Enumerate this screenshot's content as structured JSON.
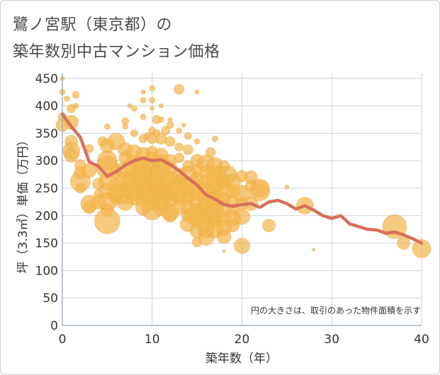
{
  "chart_data": {
    "type": "scatter",
    "title": [
      "鷺ノ宮駅（東京都）の",
      "築年数別中古マンション価格"
    ],
    "xlabel": "築年数（年）",
    "ylabel": "坪（3.3㎡）単価（万円）",
    "xlim": [
      0,
      40
    ],
    "ylim": [
      0,
      460
    ],
    "xticks": [
      0,
      10,
      20,
      30,
      40
    ],
    "yticks": [
      0,
      50,
      100,
      150,
      200,
      250,
      300,
      350,
      400,
      450
    ],
    "grid": true,
    "annotation": "円の大きさは、取引のあった物件面積を示す",
    "colors": {
      "bubble": "#f3b64d",
      "line": "#d7705a",
      "grid": "#c9d3de",
      "axis": "#8fa3b7"
    },
    "series": [
      {
        "kind": "line",
        "x": [
          0,
          1,
          2,
          3,
          4,
          5,
          6,
          7,
          8,
          9,
          10,
          11,
          12,
          13,
          14,
          15,
          16,
          17,
          18,
          19,
          20,
          21,
          22,
          23,
          24,
          25,
          26,
          27,
          28,
          29,
          30,
          31,
          32,
          33,
          34,
          35,
          36,
          37,
          38,
          39,
          40
        ],
        "y": [
          385,
          362,
          343,
          298,
          290,
          272,
          280,
          292,
          300,
          305,
          300,
          302,
          293,
          282,
          268,
          256,
          238,
          230,
          220,
          217,
          220,
          222,
          215,
          225,
          228,
          222,
          212,
          218,
          210,
          200,
          195,
          200,
          185,
          180,
          175,
          174,
          168,
          170,
          165,
          158,
          150
        ]
      },
      {
        "kind": "bubble",
        "points": [
          [
            0,
            450,
            3
          ],
          [
            0,
            425,
            4
          ],
          [
            0,
            380,
            6
          ],
          [
            0,
            365,
            9
          ],
          [
            0.5,
            413,
            4
          ],
          [
            1,
            395,
            6
          ],
          [
            1,
            370,
            10
          ],
          [
            1,
            335,
            9
          ],
          [
            1,
            318,
            12
          ],
          [
            1,
            310,
            10
          ],
          [
            1.5,
            420,
            5
          ],
          [
            1.5,
            400,
            4
          ],
          [
            2,
            292,
            8
          ],
          [
            2,
            278,
            9
          ],
          [
            2,
            262,
            14
          ],
          [
            2,
            250,
            7
          ],
          [
            3,
            322,
            6
          ],
          [
            3,
            282,
            10
          ],
          [
            3,
            222,
            12
          ],
          [
            3,
            215,
            9
          ],
          [
            4,
            258,
            8
          ],
          [
            4,
            240,
            6
          ],
          [
            4,
            225,
            10
          ],
          [
            4.5,
            335,
            7
          ],
          [
            5,
            362,
            4
          ],
          [
            5,
            327,
            10
          ],
          [
            5,
            300,
            14
          ],
          [
            5,
            288,
            16
          ],
          [
            5,
            262,
            12
          ],
          [
            5,
            245,
            11
          ],
          [
            5,
            225,
            13
          ],
          [
            5,
            210,
            9
          ],
          [
            5,
            190,
            18
          ],
          [
            6,
            335,
            12
          ],
          [
            6,
            280,
            9
          ],
          [
            6,
            255,
            10
          ],
          [
            6,
            240,
            12
          ],
          [
            6,
            230,
            8
          ],
          [
            7,
            372,
            5
          ],
          [
            7,
            362,
            4
          ],
          [
            7,
            320,
            10
          ],
          [
            7,
            305,
            9
          ],
          [
            7,
            282,
            13
          ],
          [
            7,
            262,
            14
          ],
          [
            7,
            240,
            15
          ],
          [
            7,
            225,
            12
          ],
          [
            7.5,
            400,
            3
          ],
          [
            8,
            395,
            4
          ],
          [
            8,
            350,
            5
          ],
          [
            8,
            315,
            11
          ],
          [
            8,
            290,
            15
          ],
          [
            8,
            260,
            17
          ],
          [
            8,
            245,
            14
          ],
          [
            8,
            232,
            10
          ],
          [
            8.5,
            295,
            9
          ],
          [
            9,
            425,
            3
          ],
          [
            9,
            410,
            4
          ],
          [
            9,
            380,
            4
          ],
          [
            9,
            340,
            6
          ],
          [
            9,
            312,
            10
          ],
          [
            9,
            290,
            13
          ],
          [
            9,
            270,
            16
          ],
          [
            9,
            258,
            12
          ],
          [
            9,
            240,
            9
          ],
          [
            9,
            228,
            10
          ],
          [
            9,
            215,
            11
          ],
          [
            9.5,
            345,
            5
          ],
          [
            10,
            432,
            4
          ],
          [
            10,
            410,
            4
          ],
          [
            10,
            395,
            3
          ],
          [
            10,
            355,
            5
          ],
          [
            10,
            340,
            7
          ],
          [
            10,
            315,
            9
          ],
          [
            10,
            300,
            12
          ],
          [
            10,
            288,
            13
          ],
          [
            10,
            262,
            16
          ],
          [
            10,
            245,
            15
          ],
          [
            10,
            228,
            13
          ],
          [
            10,
            210,
            14
          ],
          [
            10.5,
            375,
            6
          ],
          [
            10.5,
            350,
            5
          ],
          [
            11,
            400,
            3
          ],
          [
            11,
            375,
            4
          ],
          [
            11,
            340,
            8
          ],
          [
            11,
            310,
            10
          ],
          [
            11,
            295,
            12
          ],
          [
            11,
            280,
            14
          ],
          [
            11,
            262,
            18
          ],
          [
            11,
            245,
            16
          ],
          [
            11,
            228,
            15
          ],
          [
            11,
            215,
            12
          ],
          [
            11.5,
            355,
            6
          ],
          [
            12,
            375,
            3
          ],
          [
            12,
            365,
            5
          ],
          [
            12,
            335,
            7
          ],
          [
            12,
            300,
            9
          ],
          [
            12,
            285,
            10
          ],
          [
            12,
            262,
            14
          ],
          [
            12,
            245,
            13
          ],
          [
            12,
            230,
            11
          ],
          [
            12,
            205,
            12
          ],
          [
            12,
            200,
            9
          ],
          [
            13,
            430,
            7
          ],
          [
            13,
            355,
            4
          ],
          [
            13,
            325,
            6
          ],
          [
            13,
            305,
            7
          ],
          [
            13,
            275,
            9
          ],
          [
            13,
            258,
            12
          ],
          [
            13,
            245,
            16
          ],
          [
            13,
            230,
            9
          ],
          [
            13,
            215,
            10
          ],
          [
            13.5,
            365,
            3
          ],
          [
            14,
            345,
            5
          ],
          [
            14,
            320,
            7
          ],
          [
            14,
            290,
            8
          ],
          [
            14,
            272,
            14
          ],
          [
            14,
            255,
            12
          ],
          [
            14,
            240,
            11
          ],
          [
            14,
            230,
            9
          ],
          [
            14,
            215,
            10
          ],
          [
            14,
            200,
            9
          ],
          [
            14,
            185,
            11
          ],
          [
            14.5,
            200,
            12
          ],
          [
            15,
            425,
            3
          ],
          [
            15,
            335,
            4
          ],
          [
            15,
            300,
            9
          ],
          [
            15,
            282,
            8
          ],
          [
            15,
            265,
            10
          ],
          [
            15,
            250,
            11
          ],
          [
            15,
            238,
            9
          ],
          [
            15,
            225,
            10
          ],
          [
            15,
            205,
            13
          ],
          [
            15,
            190,
            9
          ],
          [
            15,
            172,
            10
          ],
          [
            15,
            152,
            7
          ],
          [
            16,
            295,
            12
          ],
          [
            16,
            280,
            9
          ],
          [
            16,
            262,
            10
          ],
          [
            16,
            245,
            12
          ],
          [
            16,
            230,
            11
          ],
          [
            16,
            215,
            13
          ],
          [
            16,
            205,
            16
          ],
          [
            16,
            190,
            13
          ],
          [
            16,
            175,
            12
          ],
          [
            16,
            160,
            11
          ],
          [
            16.5,
            315,
            7
          ],
          [
            17,
            340,
            4
          ],
          [
            17,
            292,
            11
          ],
          [
            17,
            275,
            12
          ],
          [
            17,
            258,
            14
          ],
          [
            17,
            245,
            11
          ],
          [
            17,
            232,
            10
          ],
          [
            17,
            220,
            12
          ],
          [
            17,
            205,
            13
          ],
          [
            17,
            190,
            10
          ],
          [
            17,
            175,
            12
          ],
          [
            17.5,
            278,
            9
          ],
          [
            18,
            290,
            8
          ],
          [
            18,
            262,
            10
          ],
          [
            18,
            245,
            14
          ],
          [
            18,
            230,
            9
          ],
          [
            18,
            212,
            11
          ],
          [
            18,
            195,
            10
          ],
          [
            18,
            178,
            11
          ],
          [
            18,
            162,
            10
          ],
          [
            18,
            135,
            2
          ],
          [
            18.5,
            275,
            12
          ],
          [
            19,
            262,
            11
          ],
          [
            19,
            245,
            10
          ],
          [
            19,
            225,
            9
          ],
          [
            19,
            212,
            8
          ],
          [
            19,
            195,
            11
          ],
          [
            19,
            182,
            9
          ],
          [
            20,
            272,
            8
          ],
          [
            20,
            240,
            12
          ],
          [
            20,
            222,
            9
          ],
          [
            20,
            198,
            11
          ],
          [
            20,
            145,
            11
          ],
          [
            21,
            270,
            9
          ],
          [
            21,
            255,
            8
          ],
          [
            21,
            222,
            10
          ],
          [
            22,
            250,
            13
          ],
          [
            22,
            245,
            14
          ],
          [
            23,
            182,
            9
          ],
          [
            25,
            252,
            3
          ],
          [
            27,
            218,
            12
          ],
          [
            28,
            138,
            2
          ],
          [
            37,
            180,
            17
          ],
          [
            38,
            150,
            9
          ],
          [
            40,
            140,
            13
          ]
        ]
      }
    ]
  }
}
